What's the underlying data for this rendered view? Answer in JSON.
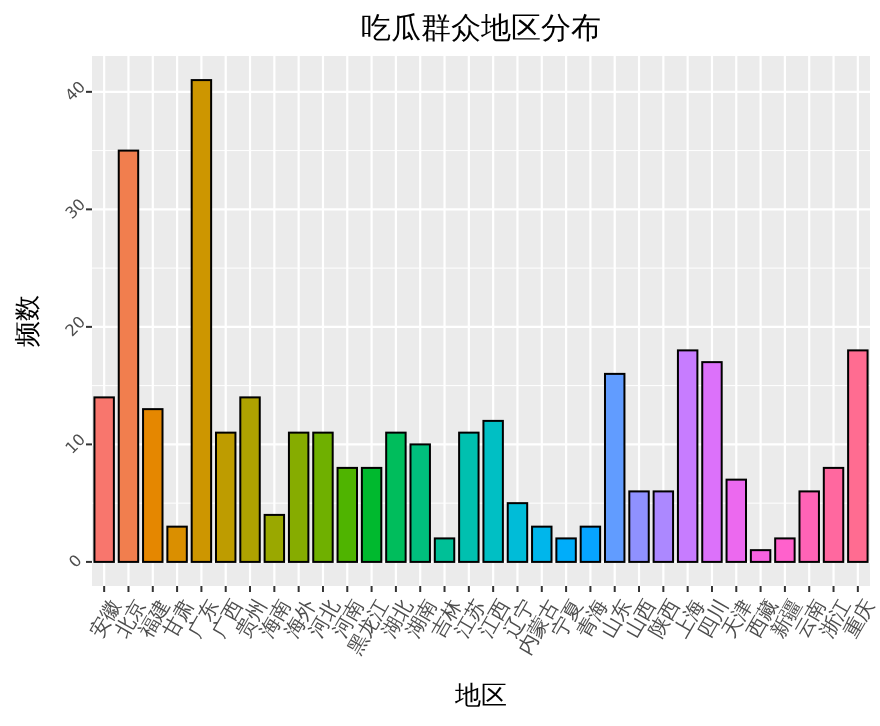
{
  "chart_data": {
    "type": "bar",
    "title": "吃瓜群众地区分布",
    "xlabel": "地区",
    "ylabel": "频数",
    "categories": [
      "安徽",
      "北京",
      "福建",
      "甘肃",
      "广东",
      "广西",
      "贵州",
      "海南",
      "海外",
      "河北",
      "河南",
      "黑龙江",
      "湖北",
      "湖南",
      "吉林",
      "江苏",
      "江西",
      "辽宁",
      "内蒙古",
      "宁夏",
      "青海",
      "山东",
      "山西",
      "陕西",
      "上海",
      "四川",
      "天津",
      "西藏",
      "新疆",
      "云南",
      "浙江",
      "重庆"
    ],
    "values": [
      14,
      35,
      13,
      3,
      41,
      11,
      14,
      4,
      11,
      11,
      8,
      8,
      11,
      10,
      2,
      11,
      12,
      5,
      3,
      2,
      3,
      16,
      6,
      6,
      18,
      17,
      7,
      1,
      2,
      6,
      8,
      18
    ],
    "colors": [
      "#F8766D",
      "#F17E4E",
      "#E58700",
      "#DA8F00",
      "#CD9600",
      "#BE9C00",
      "#AEA200",
      "#9AA800",
      "#86AC00",
      "#6FB000",
      "#4FB400",
      "#00B92E",
      "#00BD5C",
      "#00BF7D",
      "#00C097",
      "#00C0AF",
      "#00BFC4",
      "#00BCD8",
      "#00B6EB",
      "#00ADFA",
      "#06A4FF",
      "#619CFF",
      "#8F91FF",
      "#AC88FF",
      "#C77CFF",
      "#DC71FA",
      "#EC69EF",
      "#F862DF",
      "#FF61CC",
      "#FF63B6",
      "#FF689F",
      "#FF6C91"
    ],
    "ylim": [
      -2.05,
      43.05
    ],
    "yticks": [
      0,
      10,
      20,
      30,
      40
    ],
    "grid": true
  }
}
